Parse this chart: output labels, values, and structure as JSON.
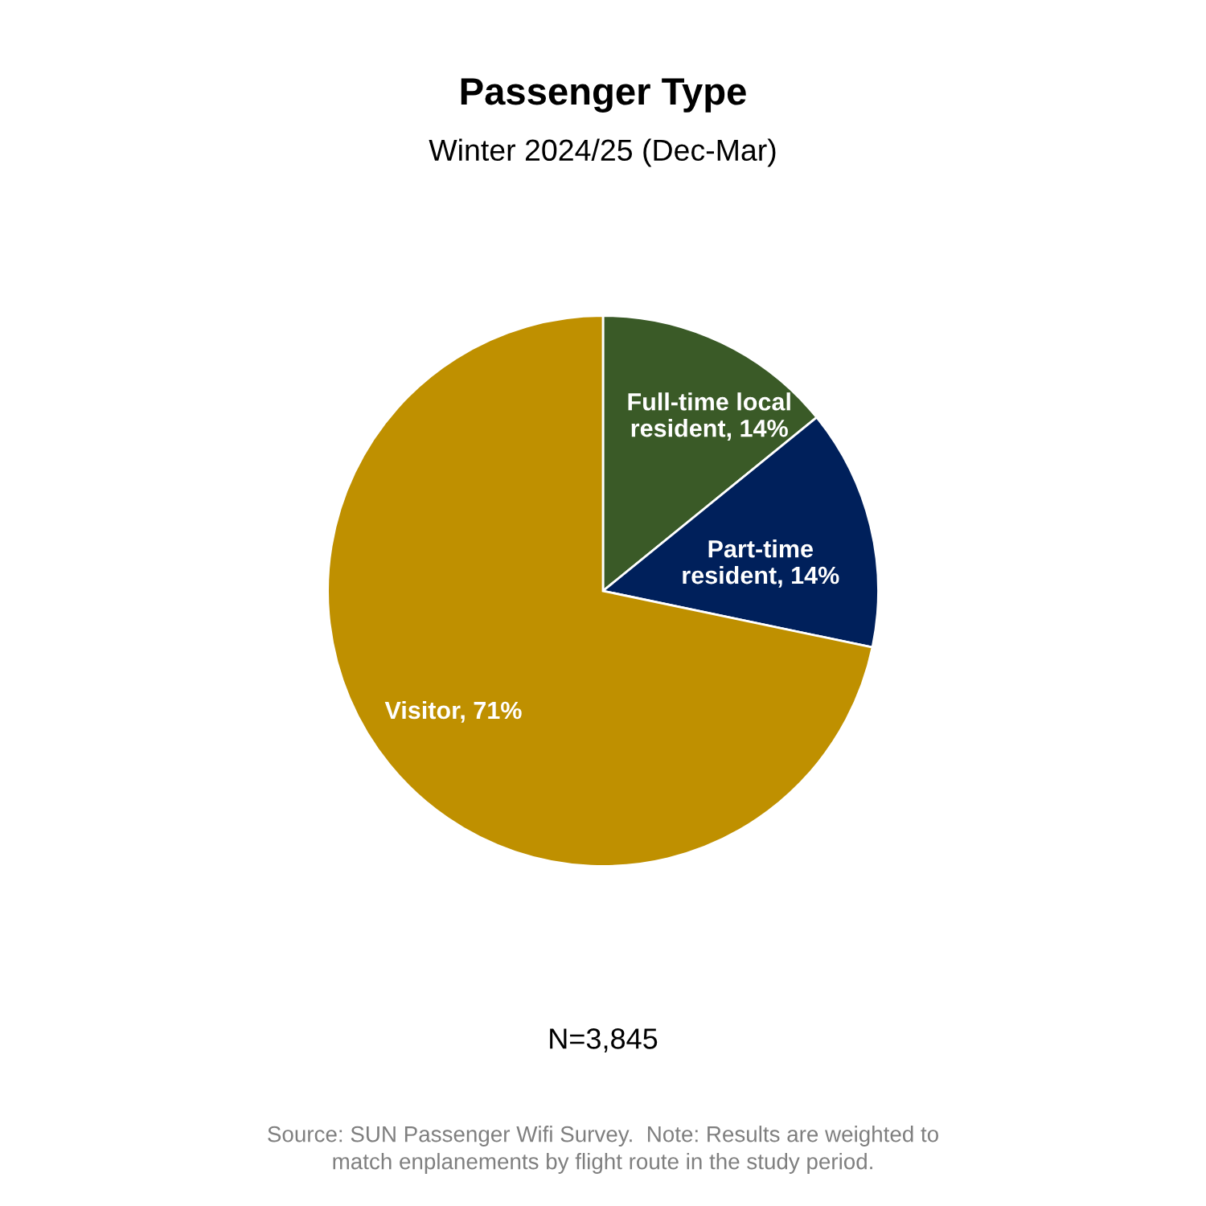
{
  "chart_data": {
    "type": "pie",
    "title": "Passenger Type",
    "subtitle": "Winter 2024/25 (Dec-Mar)",
    "categories": [
      "Full-time local\nresident",
      "Part-time\nresident",
      "Visitor"
    ],
    "values": [
      14,
      14,
      71
    ],
    "colors": [
      "#3a5a27",
      "#00205b",
      "#bf9000"
    ],
    "value_labels": [
      "14%",
      "14%",
      "71%"
    ],
    "annotations": [
      "N=3,845",
      "Source: SUN Passenger Wifi Survey.  Note: Results are weighted to\nmatch enplanements by flight route in the study period."
    ]
  }
}
